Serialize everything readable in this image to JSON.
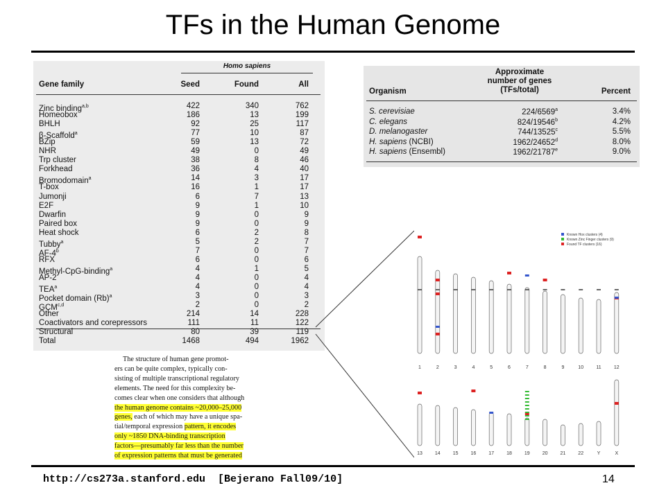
{
  "header": {
    "title": "TFs in the Human Genome"
  },
  "family_table": {
    "group_header": "Homo sapiens",
    "columns": [
      "Gene family",
      "Seed",
      "Found",
      "All"
    ],
    "rows": [
      {
        "name": "Zinc binding",
        "sup": "a,b",
        "cells": [
          422,
          340,
          762
        ]
      },
      {
        "name": "Homeobox",
        "cells": [
          186,
          13,
          199
        ]
      },
      {
        "name": "BHLH",
        "cells": [
          92,
          25,
          117
        ]
      },
      {
        "name": "β-Scaffold",
        "sup": "a",
        "cells": [
          77,
          10,
          87
        ]
      },
      {
        "name": "BZip",
        "cells": [
          59,
          13,
          72
        ]
      },
      {
        "name": "NHR",
        "cells": [
          49,
          0,
          49
        ]
      },
      {
        "name": "Trp cluster",
        "cells": [
          38,
          8,
          46
        ]
      },
      {
        "name": "Forkhead",
        "cells": [
          36,
          4,
          40
        ]
      },
      {
        "name": "Bromodomain",
        "sup": "a",
        "cells": [
          14,
          3,
          17
        ]
      },
      {
        "name": "T-box",
        "cells": [
          16,
          1,
          17
        ]
      },
      {
        "name": "Jumonji",
        "cells": [
          6,
          7,
          13
        ]
      },
      {
        "name": "E2F",
        "cells": [
          9,
          1,
          10
        ]
      },
      {
        "name": "Dwarfin",
        "cells": [
          9,
          0,
          9
        ]
      },
      {
        "name": "Paired box",
        "cells": [
          9,
          0,
          9
        ]
      },
      {
        "name": "Heat shock",
        "cells": [
          6,
          2,
          8
        ]
      },
      {
        "name": "Tubby",
        "sup": "a",
        "cells": [
          5,
          2,
          7
        ]
      },
      {
        "name": "AF-4",
        "sup": "b",
        "cells": [
          7,
          0,
          7
        ]
      },
      {
        "name": "RFX",
        "cells": [
          6,
          0,
          6
        ]
      },
      {
        "name": "Methyl-CpG-binding",
        "sup": "a",
        "cells": [
          4,
          1,
          5
        ]
      },
      {
        "name": "AP-2",
        "cells": [
          4,
          0,
          4
        ]
      },
      {
        "name": "TEA",
        "sup": "a",
        "cells": [
          4,
          0,
          4
        ]
      },
      {
        "name": "Pocket domain (Rb)",
        "sup": "a",
        "cells": [
          3,
          0,
          3
        ]
      },
      {
        "name": "GCM",
        "sup": "c,d",
        "cells": [
          2,
          0,
          2
        ]
      },
      {
        "name": "Other",
        "cells": [
          214,
          14,
          228
        ]
      },
      {
        "name": "Coactivators and corepressors",
        "cells": [
          111,
          11,
          122
        ]
      },
      {
        "name": "Structural",
        "cells": [
          80,
          39,
          119
        ]
      },
      {
        "name": "Total",
        "cells": [
          1468,
          494,
          1962
        ]
      }
    ]
  },
  "organism_table": {
    "columns": [
      "Organism",
      [
        "Approximate",
        "number of genes",
        "(TFs/total)"
      ],
      "Percent"
    ],
    "rows": [
      {
        "organism": "S. cerevisiae",
        "suffix": "",
        "count": "224/6569",
        "sup": "a",
        "percent": "3.4%"
      },
      {
        "organism": "C. elegans",
        "suffix": "",
        "count": "824/19546",
        "sup": "b",
        "percent": "4.2%"
      },
      {
        "organism": "D. melanogaster",
        "suffix": "",
        "count": "744/13525",
        "sup": "c",
        "percent": "5.5%"
      },
      {
        "organism": "H. sapiens",
        "suffix": " (NCBI)",
        "count": "1962/24652",
        "sup": "d",
        "percent": "8.0%"
      },
      {
        "organism": "H. sapiens",
        "suffix": " (Ensembl)",
        "count": "1962/21787",
        "sup": "e",
        "percent": "9.0%"
      }
    ]
  },
  "excerpt": {
    "lines": [
      [
        {
          "text": "The structure of human gene promot-",
          "highlight": false
        }
      ],
      [
        {
          "text": "ers can be quite complex, typically con-",
          "highlight": false
        }
      ],
      [
        {
          "text": "sisting of multiple transcriptional regulatory",
          "highlight": false
        }
      ],
      [
        {
          "text": "elements. The need for this complexity be-",
          "highlight": false
        }
      ],
      [
        {
          "text": "comes clear when one considers that although",
          "highlight": false
        }
      ],
      [
        {
          "text": "the human genome contains ~20,000–25,000",
          "highlight": true
        }
      ],
      [
        {
          "text": "genes,",
          "highlight": true
        },
        {
          "text": " each of which may have a unique spa-",
          "highlight": false
        }
      ],
      [
        {
          "text": "tial/temporal expression ",
          "highlight": false
        },
        {
          "text": "pattern, it encodes",
          "highlight": true
        }
      ],
      [
        {
          "text": "only ~1850 DNA-binding transcription",
          "highlight": true
        }
      ],
      [
        {
          "text": "factors—presumably far less than the number",
          "highlight": true
        }
      ],
      [
        {
          "text": "of expression patterns that must be generated",
          "highlight": true
        }
      ]
    ]
  },
  "figure": {
    "legend": [
      {
        "label": "Known Hox clusters (4)",
        "color": "#3355cc"
      },
      {
        "label": "Known Zinc Finger clusters (9)",
        "color": "#33bb33"
      },
      {
        "label": "Found TF clusters (16)",
        "color": "#dd2222"
      }
    ],
    "top_labels": [
      "1",
      "2",
      "3",
      "4",
      "5",
      "6",
      "7",
      "8",
      "9",
      "10",
      "11",
      "12"
    ],
    "bottom_labels": [
      "13",
      "14",
      "15",
      "16",
      "17",
      "18",
      "19",
      "20",
      "21",
      "22",
      "Y",
      "X"
    ]
  },
  "footer": {
    "text": "http://cs273a.stanford.edu  [Bejerano Fall09/10]",
    "page": "14"
  }
}
